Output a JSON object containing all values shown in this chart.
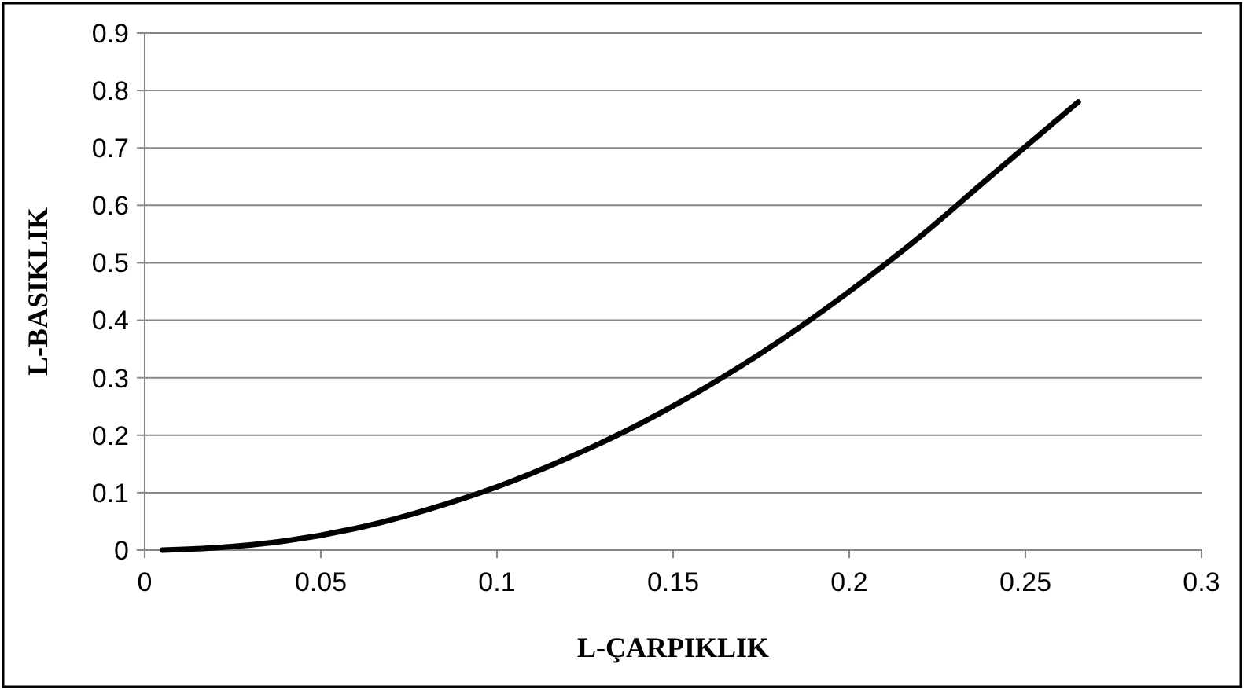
{
  "chart_data": {
    "type": "line",
    "xlabel": "L-ÇARPIKLIK",
    "ylabel": "L-BASIKLIK",
    "x": [
      0.005,
      0.02,
      0.04,
      0.06,
      0.08,
      0.1,
      0.12,
      0.14,
      0.16,
      0.18,
      0.2,
      0.22,
      0.24,
      0.265
    ],
    "series": [
      {
        "color": "#000000",
        "values": [
          0,
          0.004,
          0.016,
          0.038,
          0.07,
          0.11,
          0.16,
          0.218,
          0.286,
          0.363,
          0.45,
          0.545,
          0.65,
          0.78
        ]
      }
    ],
    "xlim": [
      0,
      0.3
    ],
    "xticks": [
      0,
      0.05,
      0.1,
      0.15,
      0.2,
      0.25,
      0.3
    ],
    "ylim": [
      0,
      0.9
    ],
    "yticks": [
      0,
      0.1,
      0.2,
      0.3,
      0.4,
      0.5,
      0.6,
      0.7,
      0.8,
      0.9
    ],
    "grid": "y",
    "marker": "none",
    "line_style": "solid"
  }
}
